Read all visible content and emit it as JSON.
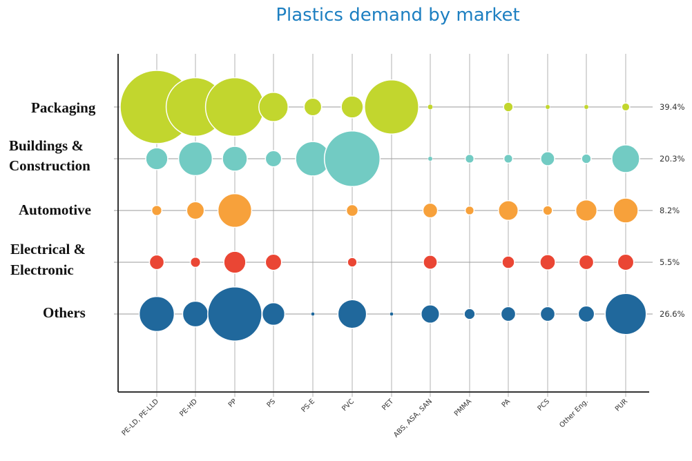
{
  "chart_data": {
    "type": "bubble-matrix",
    "title": "Plastics demand by market",
    "x": [
      "PE-LD, PE-LLD",
      "PE-HD",
      "PP",
      "PS",
      "PS-E",
      "PVC",
      "PET",
      "ABS, ASA, SAN",
      "PMMA",
      "PA",
      "PCS",
      "Other Eng.",
      "PUR"
    ],
    "y": [
      "Packaging",
      "Buildings & Construction",
      "Automotive",
      "Electrical & Electronic",
      "Others"
    ],
    "shares": [
      "39.4%",
      "20.3%",
      "8.2%",
      "5.5%",
      "26.6%"
    ],
    "colors": [
      "#c2d62e",
      "#72cbc3",
      "#f7a13b",
      "#ea4634",
      "#20689c"
    ],
    "bubble_sizes_relative": [
      [
        10.0,
        8.0,
        8.0,
        4.0,
        2.4,
        3.0,
        7.4,
        0.7,
        0,
        1.3,
        0.6,
        0.6,
        1.1
      ],
      [
        3.0,
        4.6,
        3.4,
        2.2,
        4.7,
        7.6,
        0,
        0.6,
        1.2,
        1.2,
        1.9,
        1.3,
        3.8
      ],
      [
        1.4,
        2.4,
        4.6,
        0,
        0,
        1.6,
        0,
        2.0,
        1.2,
        2.7,
        1.3,
        2.9,
        3.4
      ],
      [
        2.0,
        1.4,
        3.0,
        2.2,
        0,
        1.3,
        0,
        1.9,
        0,
        1.7,
        2.1,
        2.0,
        2.2
      ],
      [
        4.8,
        3.5,
        7.4,
        3.1,
        0.5,
        3.9,
        0.5,
        2.5,
        1.5,
        2.0,
        2.0,
        2.2,
        5.6
      ]
    ],
    "grid": true
  }
}
